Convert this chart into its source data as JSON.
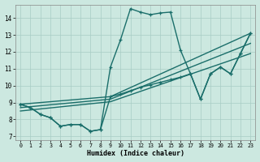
{
  "xlabel": "Humidex (Indice chaleur)",
  "xlim": [
    -0.5,
    23.5
  ],
  "ylim": [
    6.8,
    14.8
  ],
  "yticks": [
    7,
    8,
    9,
    10,
    11,
    12,
    13,
    14
  ],
  "xticks": [
    0,
    1,
    2,
    3,
    4,
    5,
    6,
    7,
    8,
    9,
    10,
    11,
    12,
    13,
    14,
    15,
    16,
    17,
    18,
    19,
    20,
    21,
    22,
    23
  ],
  "background_color": "#cce8e0",
  "grid_color": "#a8ccc4",
  "line_color": "#1a6e6a",
  "series_jagged": {
    "x": [
      0,
      1,
      2,
      3,
      4,
      5,
      6,
      7,
      8,
      9,
      10,
      11,
      12,
      13,
      14,
      15,
      16,
      17,
      18,
      19,
      20,
      21,
      22,
      23
    ],
    "y": [
      8.9,
      8.7,
      8.3,
      8.1,
      7.6,
      7.7,
      7.7,
      7.3,
      7.4,
      11.1,
      12.7,
      14.55,
      14.35,
      14.2,
      14.3,
      14.35,
      12.1,
      10.7,
      9.2,
      10.7,
      11.1,
      10.7,
      11.9,
      13.1
    ]
  },
  "series_linear1": {
    "x": [
      0,
      9,
      23
    ],
    "y": [
      8.9,
      9.35,
      13.1
    ]
  },
  "series_linear2": {
    "x": [
      0,
      9,
      23
    ],
    "y": [
      8.7,
      9.2,
      12.5
    ]
  },
  "series_linear3": {
    "x": [
      0,
      9,
      23
    ],
    "y": [
      8.5,
      9.05,
      11.9
    ]
  },
  "series_bottom": {
    "x": [
      0,
      1,
      2,
      3,
      4,
      5,
      6,
      7,
      8,
      9,
      10,
      11,
      12,
      13,
      14,
      15,
      16,
      17,
      18,
      19,
      20,
      21,
      22,
      23
    ],
    "y": [
      8.9,
      8.7,
      8.3,
      8.1,
      7.6,
      7.7,
      7.7,
      7.3,
      7.4,
      9.35,
      9.5,
      9.7,
      9.9,
      10.05,
      10.2,
      10.35,
      10.5,
      10.7,
      9.2,
      10.7,
      11.1,
      10.7,
      11.9,
      13.1
    ]
  }
}
